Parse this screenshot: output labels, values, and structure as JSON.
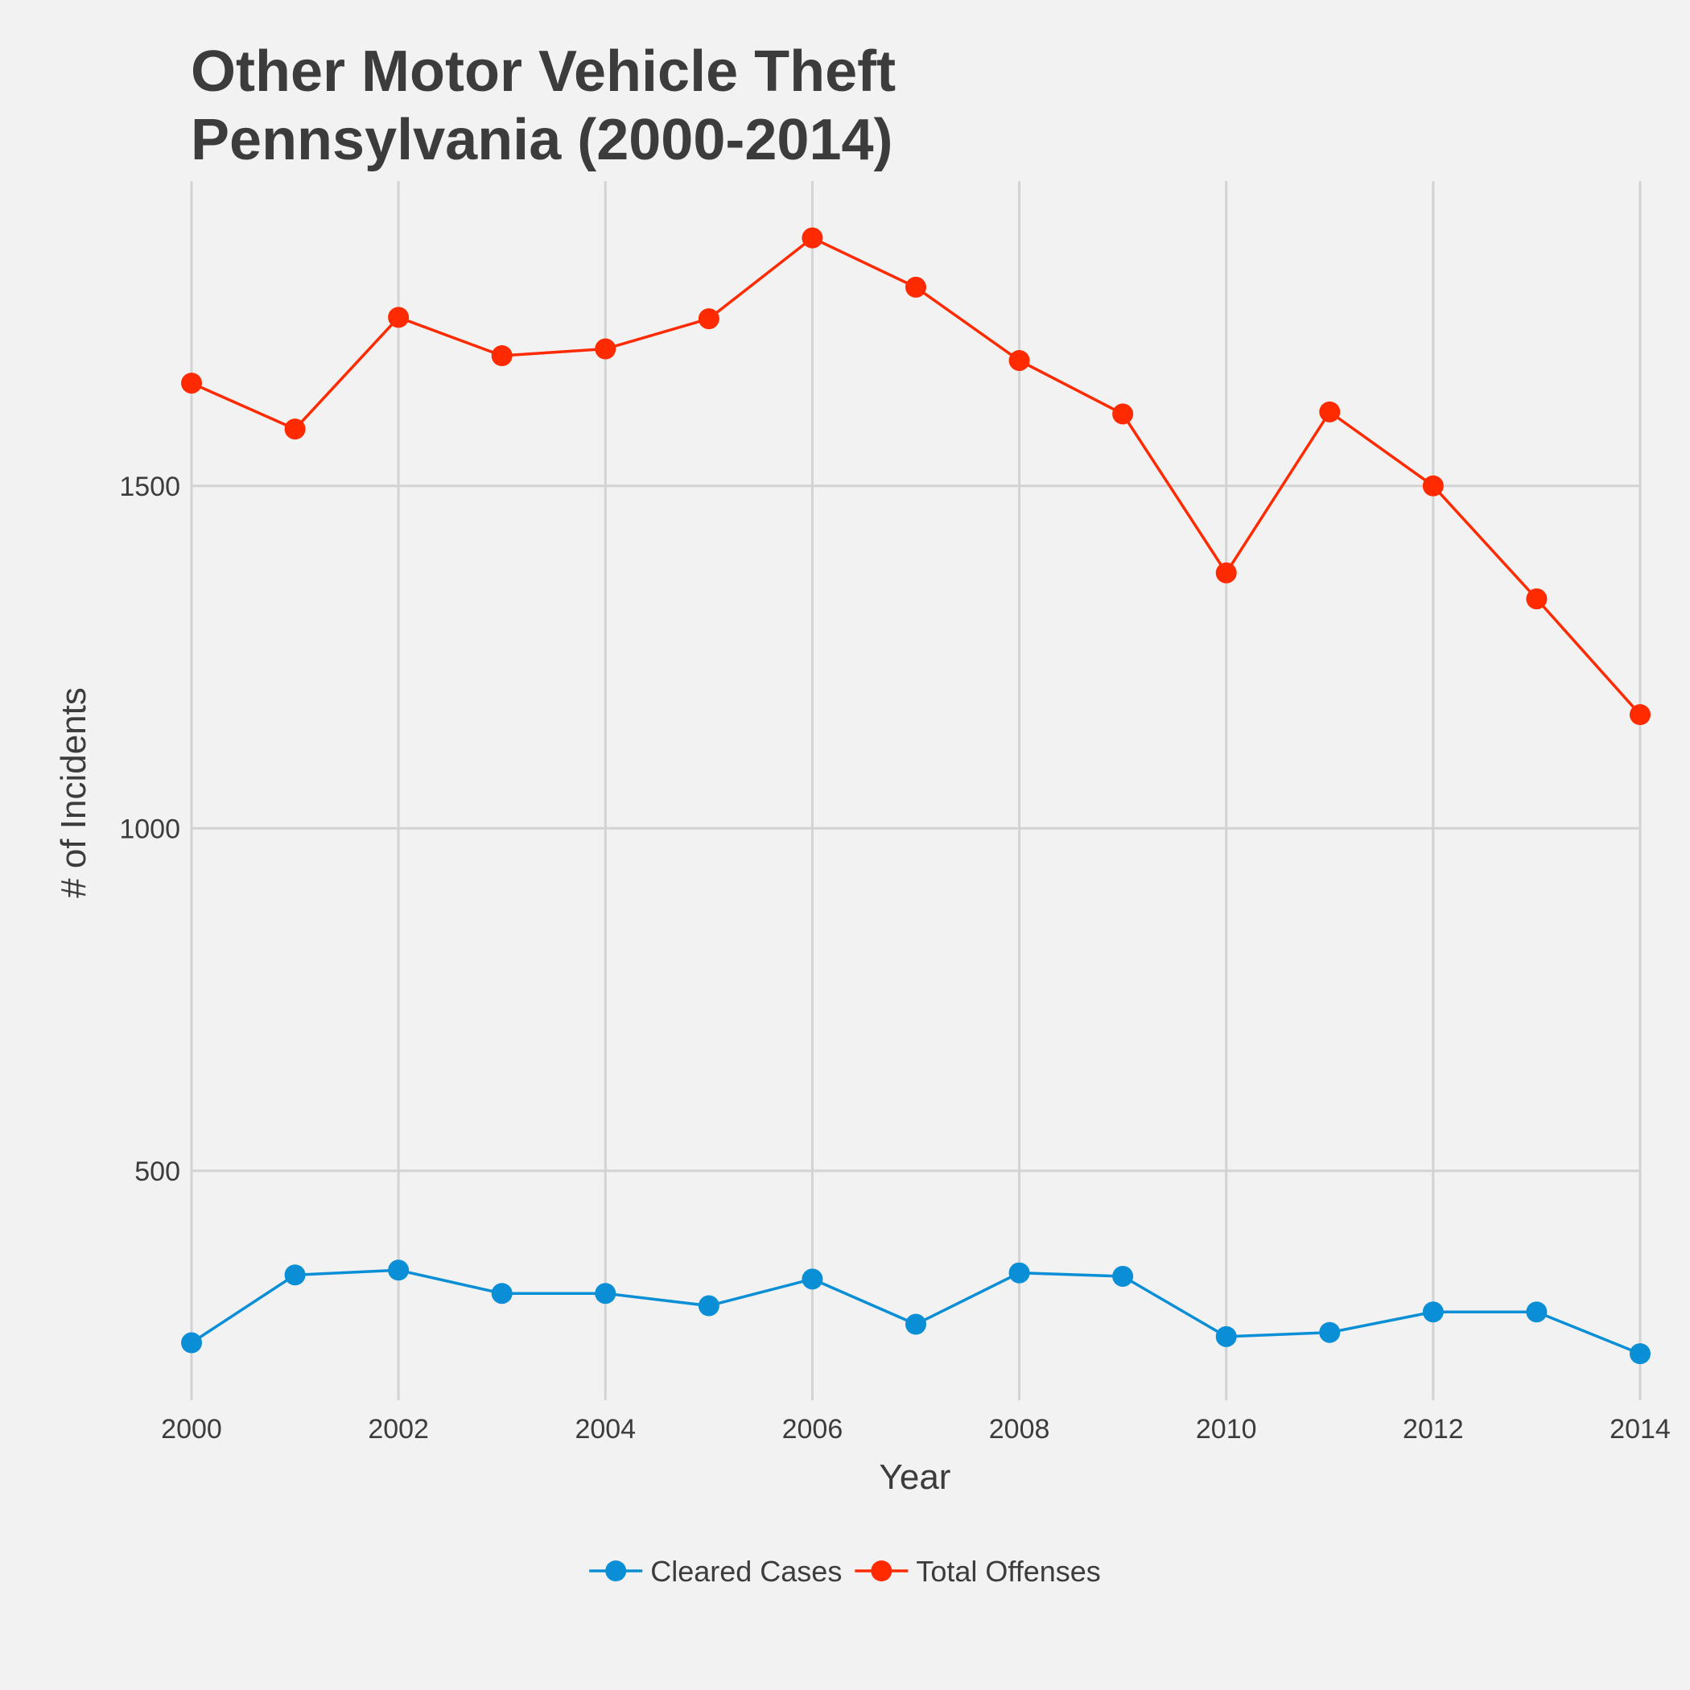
{
  "chart_data": {
    "type": "line",
    "title_lines": [
      "Other Motor Vehicle Theft",
      "Pennsylvania (2000-2014)"
    ],
    "xlabel": "Year",
    "ylabel": "# of Incidents",
    "x": [
      2000,
      2001,
      2002,
      2003,
      2004,
      2005,
      2006,
      2007,
      2008,
      2009,
      2010,
      2011,
      2012,
      2013,
      2014
    ],
    "xlim": [
      2000,
      2014
    ],
    "ylim": [
      165,
      1945
    ],
    "x_ticks": [
      2000,
      2002,
      2004,
      2006,
      2008,
      2010,
      2012,
      2014
    ],
    "x_tick_labels": [
      "2000",
      "2002",
      "2004",
      "2006",
      "2008",
      "2010",
      "2012",
      "2014"
    ],
    "y_ticks": [
      500,
      1000,
      1500
    ],
    "y_tick_labels": [
      "500",
      "1000",
      "1500"
    ],
    "grid": true,
    "legend_position": "bottom",
    "series": [
      {
        "name": "Cleared Cases",
        "color": "#0a8fd6",
        "values": [
          249,
          348,
          355,
          321,
          321,
          303,
          342,
          276,
          351,
          346,
          258,
          264,
          294,
          294,
          233
        ]
      },
      {
        "name": "Total Offenses",
        "color": "#ff2a00",
        "values": [
          1650,
          1583,
          1746,
          1690,
          1700,
          1744,
          1862,
          1790,
          1683,
          1605,
          1373,
          1608,
          1500,
          1335,
          1166
        ]
      }
    ]
  }
}
